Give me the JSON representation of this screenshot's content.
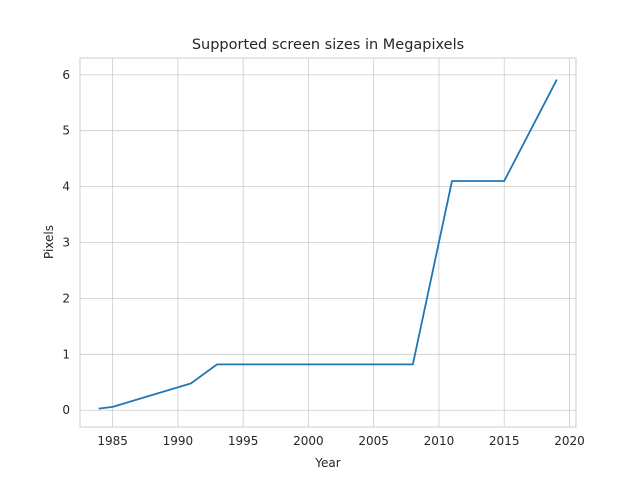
{
  "chart_data": {
    "type": "line",
    "title": "Supported screen sizes in Megapixels",
    "xlabel": "Year",
    "ylabel": "Pixels",
    "xlim": [
      1982.5,
      2020.5
    ],
    "ylim": [
      -0.3,
      6.3
    ],
    "xticks": [
      1985,
      1990,
      1995,
      2000,
      2005,
      2010,
      2015,
      2020
    ],
    "yticks": [
      0,
      1,
      2,
      3,
      4,
      5,
      6
    ],
    "grid": true,
    "series": [
      {
        "color": "#1f77b4",
        "x": [
          1984,
          1985,
          1991,
          1993,
          2008,
          2011,
          2015,
          2019
        ],
        "y": [
          0.03,
          0.06,
          0.48,
          0.82,
          0.82,
          4.1,
          4.1,
          5.9
        ]
      }
    ]
  }
}
